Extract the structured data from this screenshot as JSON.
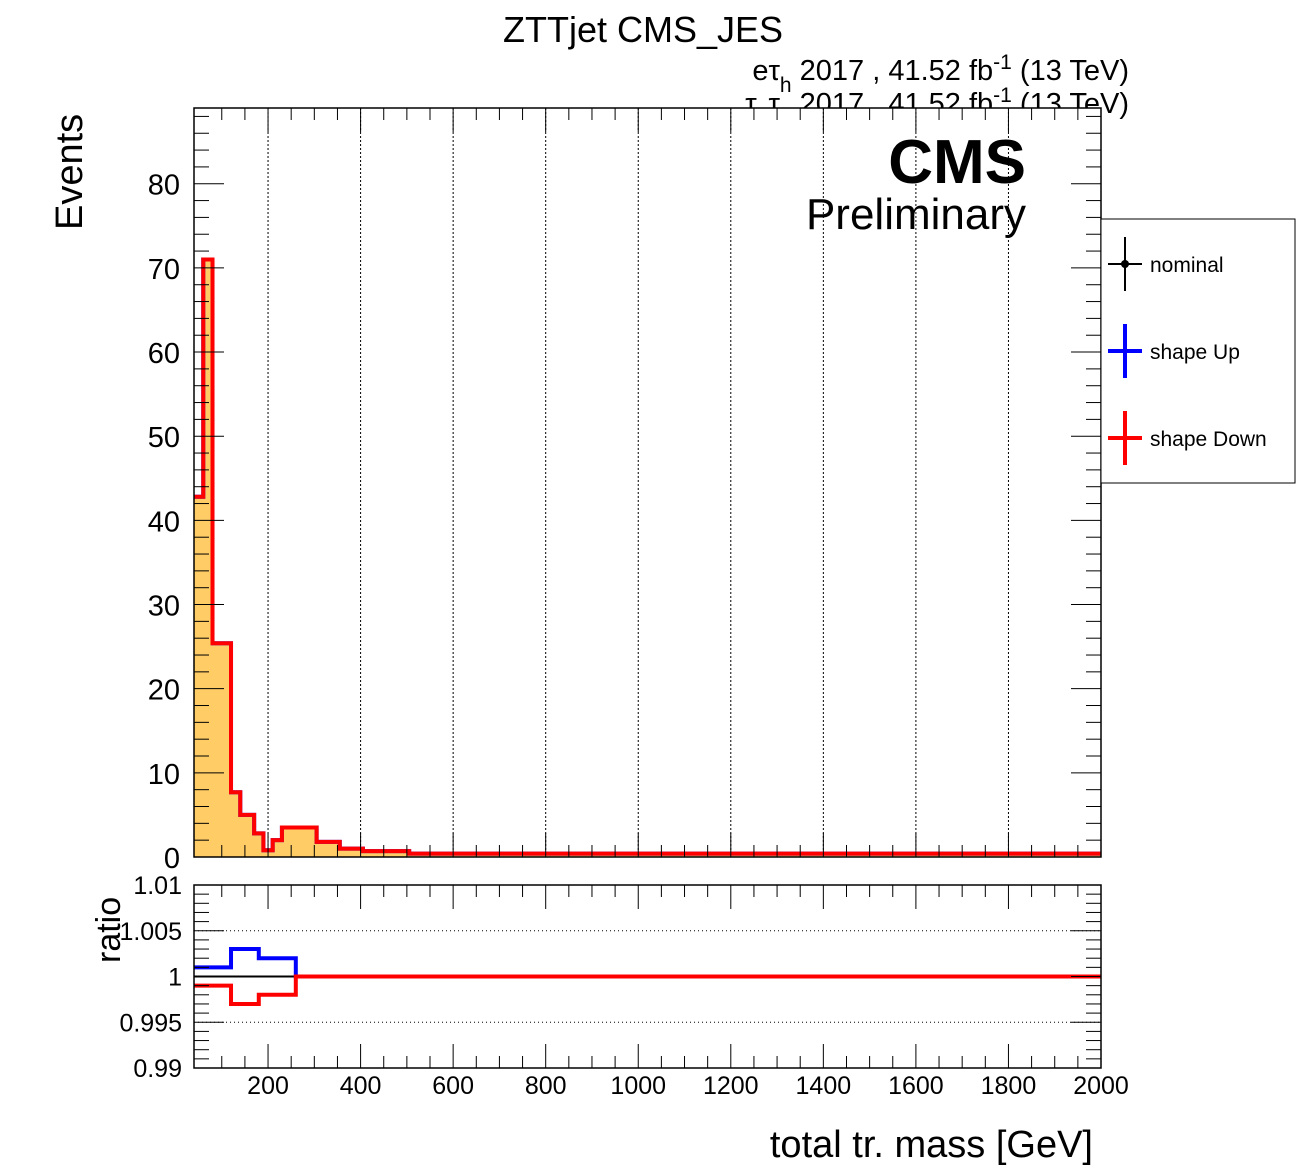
{
  "chart_data": [
    {
      "panel": "main",
      "type": "line",
      "title": "ZTTjet CMS_JES",
      "lumi_lines": [
        {
          "pre": "eτ",
          "pre_sub": "h",
          "mid": "",
          "mid_sub": "",
          "post": " 2017 , 41.52 fb",
          "sup": "-1",
          "tail": " (13 TeV)"
        },
        {
          "pre": "τ",
          "pre_sub": "h",
          "mid": "τ",
          "mid_sub": "h",
          "post": " 2017 , 41.52 fb",
          "sup": "-1",
          "tail": " (13 TeV)"
        }
      ],
      "cms_label": "CMS",
      "cms_sublabel": "Preliminary",
      "ylabel": "Events",
      "xlim": [
        40,
        2000
      ],
      "ylim": [
        0,
        89
      ],
      "y_ticks": [
        0,
        10,
        20,
        30,
        40,
        50,
        60,
        70,
        80
      ],
      "x_grid": [
        200,
        400,
        600,
        800,
        1000,
        1200,
        1400,
        1600,
        1800
      ],
      "grid": true,
      "bin_edges": [
        40,
        60,
        80,
        120,
        140,
        170,
        190,
        210,
        230,
        255,
        305,
        355,
        405,
        505,
        2000
      ],
      "series": [
        {
          "name": "nominal",
          "color": "#000000",
          "fill": "#ffcc66",
          "values": [
            42.8,
            71.0,
            25.4,
            7.7,
            5.0,
            2.8,
            0.8,
            2.0,
            3.5,
            3.5,
            1.8,
            1.0,
            0.7,
            0.4
          ]
        },
        {
          "name": "shape Up",
          "color": "#0000ff",
          "values": [
            42.8,
            71.0,
            25.4,
            7.7,
            5.0,
            2.8,
            0.8,
            2.0,
            3.5,
            3.5,
            1.8,
            1.0,
            0.7,
            0.4
          ]
        },
        {
          "name": "shape Down",
          "color": "#ff0000",
          "values": [
            42.8,
            71.0,
            25.4,
            7.7,
            5.0,
            2.8,
            0.8,
            2.0,
            3.5,
            3.5,
            1.8,
            1.0,
            0.7,
            0.4
          ]
        }
      ],
      "legend": {
        "placement": "right",
        "entries": [
          {
            "label": "nominal",
            "color": "#000000"
          },
          {
            "label": "shape Up",
            "color": "#0000ff"
          },
          {
            "label": "shape Down",
            "color": "#ff0000"
          }
        ]
      }
    },
    {
      "panel": "ratio",
      "type": "line",
      "ylabel": "ratio",
      "xlabel": "total tr. mass [GeV]",
      "xlim": [
        40,
        2000
      ],
      "ylim": [
        0.99,
        1.01
      ],
      "y_ticks": [
        0.99,
        0.995,
        1,
        1.005,
        1.01
      ],
      "y_tick_labels": [
        "0.99",
        "0.995",
        "1",
        "1.005",
        "1.01"
      ],
      "x_ticks": [
        200,
        400,
        600,
        800,
        1000,
        1200,
        1400,
        1600,
        1800,
        2000
      ],
      "y_grid": [
        0.995,
        1,
        1.005
      ],
      "series": [
        {
          "name": "nominal",
          "color": "#000000",
          "edges": [
            40,
            2000
          ],
          "values": [
            1.0
          ]
        },
        {
          "name": "shape Up",
          "color": "#0000ff",
          "edges": [
            40,
            120,
            180,
            260,
            2000
          ],
          "values": [
            1.001,
            1.003,
            1.002,
            1.0
          ]
        },
        {
          "name": "shape Down",
          "color": "#ff0000",
          "edges": [
            40,
            120,
            180,
            260,
            2000
          ],
          "values": [
            0.999,
            0.997,
            0.998,
            1.0
          ]
        }
      ]
    }
  ]
}
